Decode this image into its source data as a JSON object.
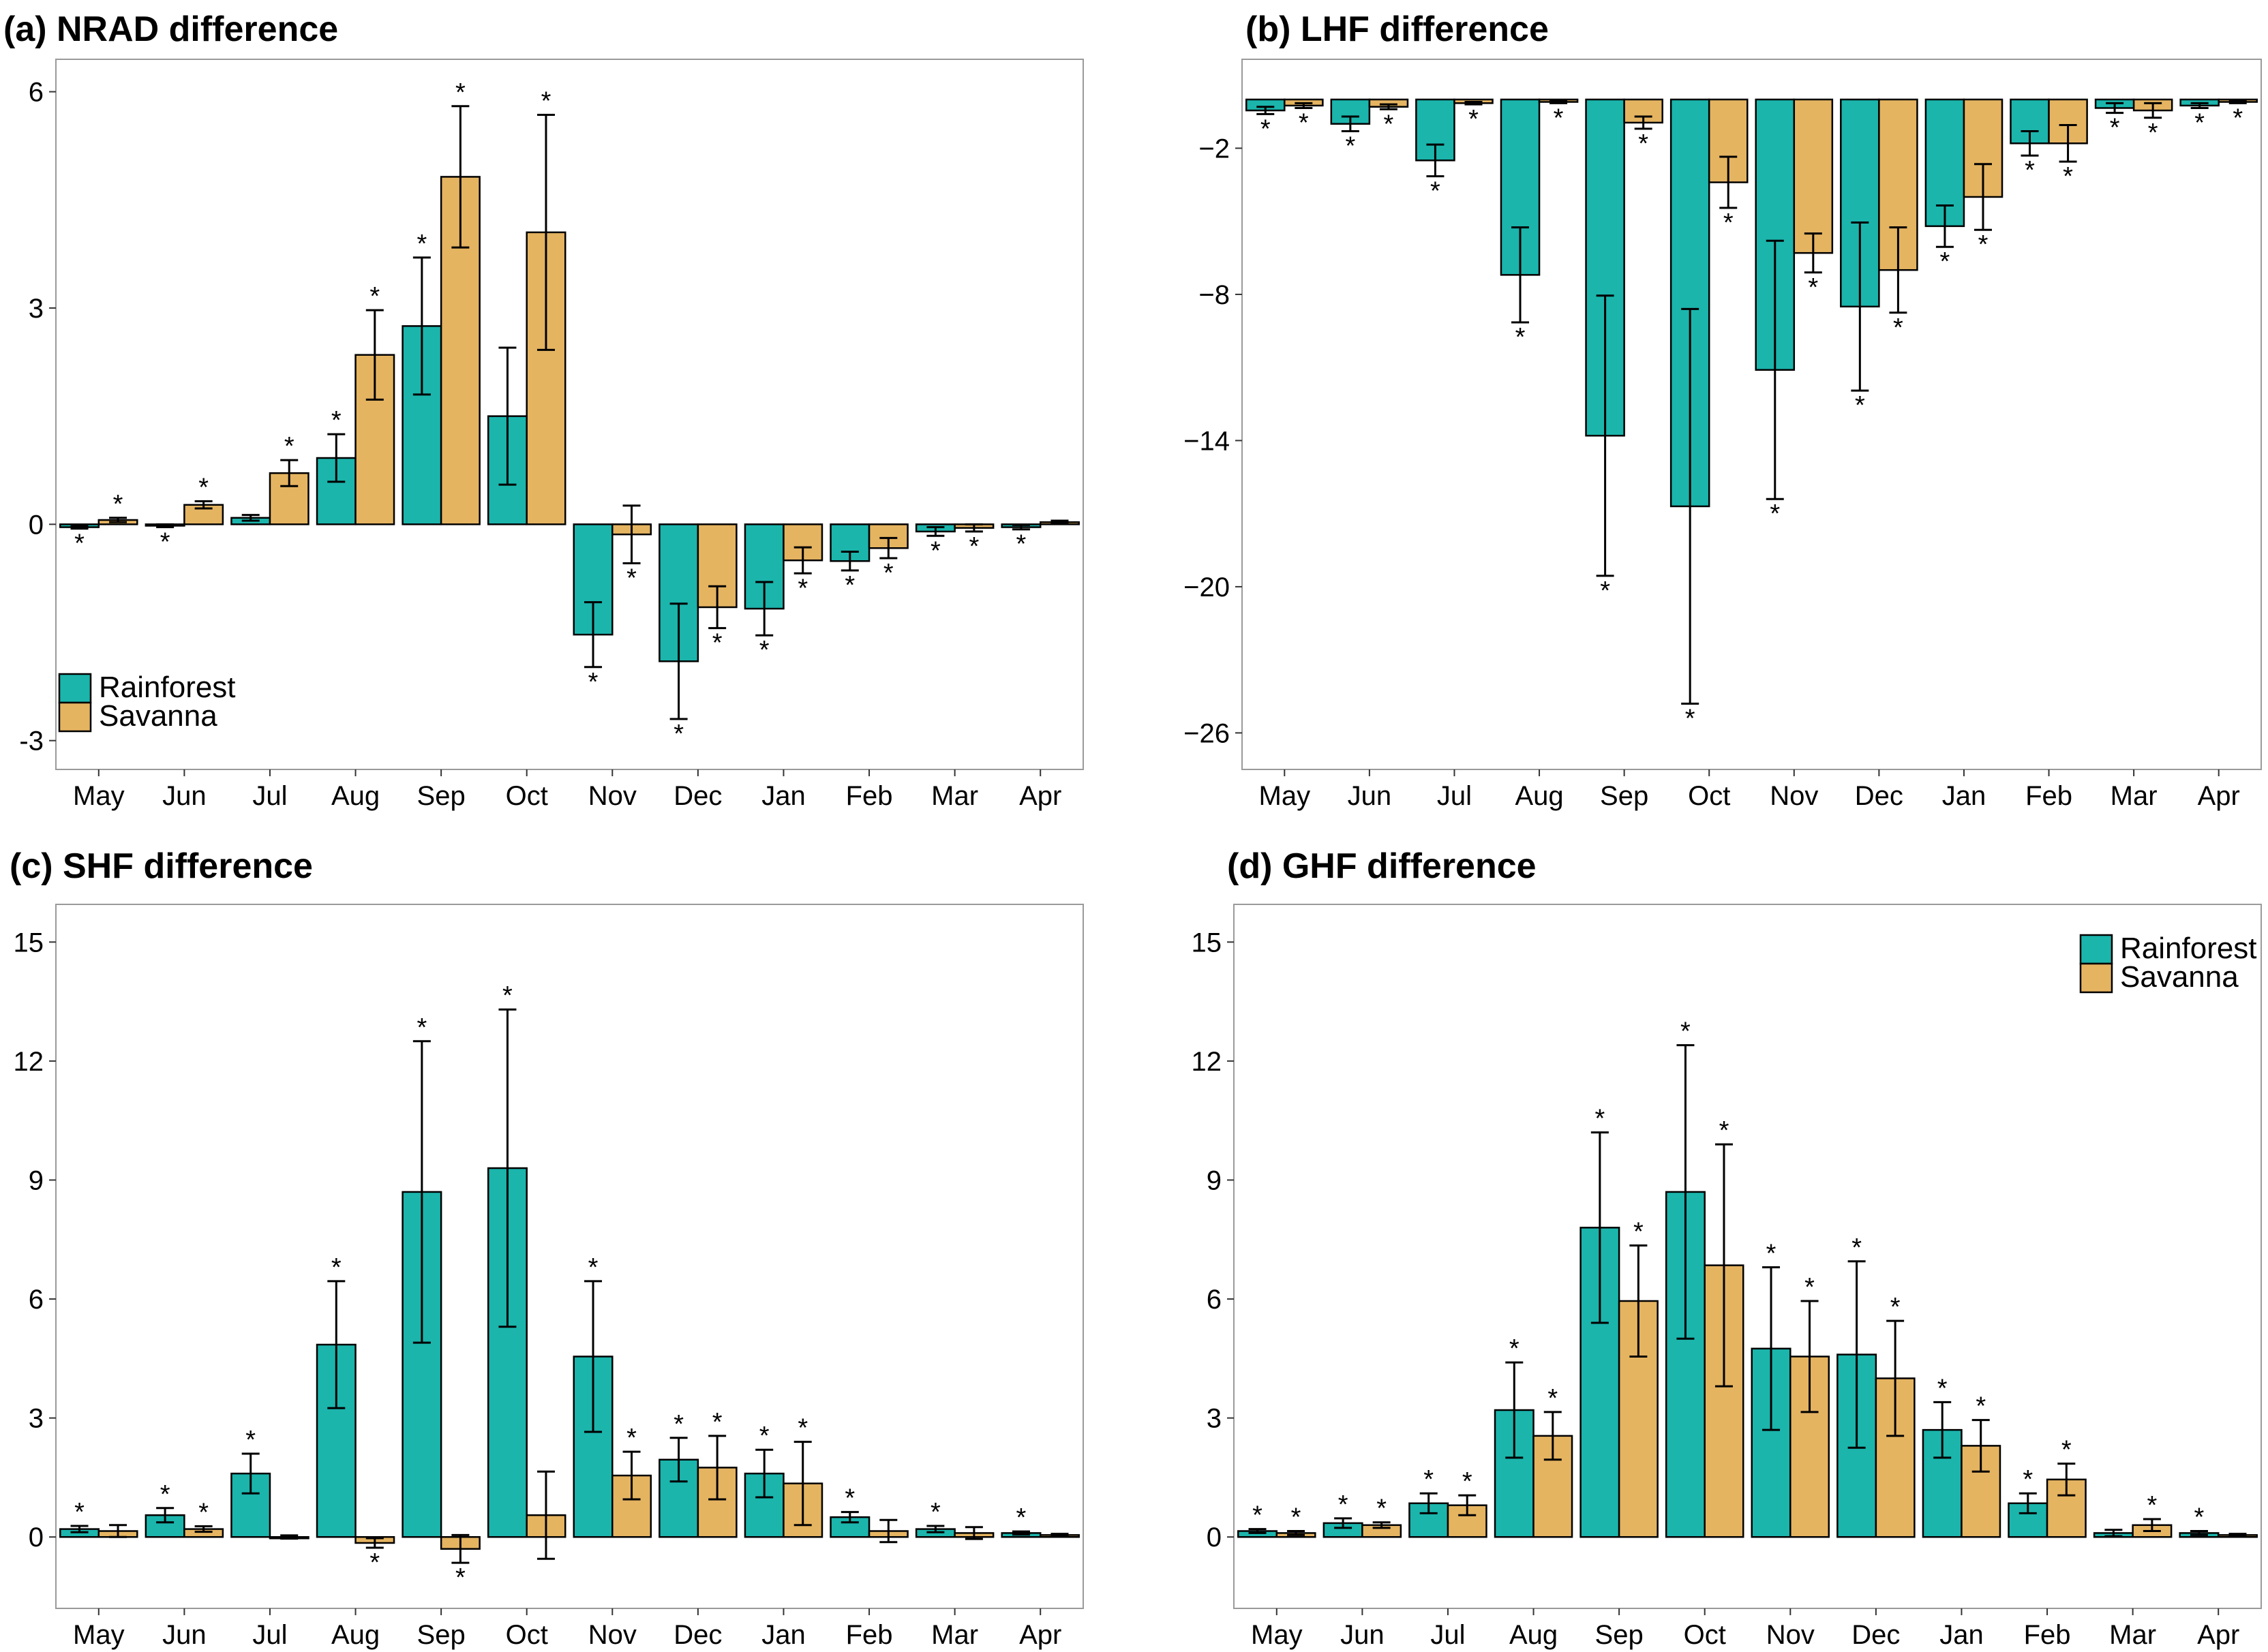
{
  "colors": {
    "rainforest": "#1bb5ac",
    "savanna": "#e5b461"
  },
  "chart_data": [
    {
      "type": "bar",
      "panel": "a",
      "title": "(a) NRAD difference",
      "categories": [
        "May",
        "Jun",
        "Jul",
        "Aug",
        "Sep",
        "Oct",
        "Nov",
        "Dec",
        "Jan",
        "Feb",
        "Mar",
        "Apr"
      ],
      "ylim": [
        -3.4,
        6.45
      ],
      "yticks": [
        -3,
        0,
        3,
        6
      ],
      "ytick_labels": [
        "-3",
        "0",
        "3",
        "6"
      ],
      "legend": {
        "placement": "bottom-left",
        "entries": [
          "Rainforest",
          "Savanna"
        ]
      },
      "series": [
        {
          "name": "Rainforest",
          "values": [
            -0.04,
            -0.02,
            0.09,
            0.92,
            2.75,
            1.5,
            -1.53,
            -1.9,
            -1.17,
            -0.51,
            -0.1,
            -0.04
          ],
          "err": [
            0.02,
            0.02,
            0.04,
            0.33,
            0.95,
            0.95,
            0.45,
            0.8,
            0.37,
            0.13,
            0.06,
            0.03
          ],
          "sig": [
            true,
            true,
            false,
            true,
            true,
            false,
            true,
            true,
            true,
            true,
            true,
            true
          ]
        },
        {
          "name": "Savanna",
          "values": [
            0.06,
            0.27,
            0.71,
            2.35,
            4.82,
            4.05,
            -0.14,
            -1.15,
            -0.5,
            -0.33,
            -0.05,
            0.03
          ],
          "err": [
            0.03,
            0.05,
            0.18,
            0.62,
            0.98,
            1.63,
            0.4,
            0.29,
            0.18,
            0.14,
            0.05,
            0.02
          ],
          "sig": [
            true,
            true,
            true,
            true,
            true,
            true,
            true,
            true,
            true,
            true,
            true,
            false
          ]
        }
      ]
    },
    {
      "type": "bar",
      "panel": "b",
      "title": "(b) LHF difference",
      "categories": [
        "May",
        "Jun",
        "Jul",
        "Aug",
        "Sep",
        "Oct",
        "Nov",
        "Dec",
        "Jan",
        "Feb",
        "Mar",
        "Apr"
      ],
      "ylim": [
        -27.5,
        1.65
      ],
      "yticks": [
        -26,
        -20,
        -14,
        -8,
        -2
      ],
      "ytick_labels": [
        "−26",
        "−20",
        "−14",
        "−8",
        "−2"
      ],
      "legend": null,
      "series": [
        {
          "name": "Rainforest",
          "values": [
            -0.45,
            -1.0,
            -2.5,
            -7.2,
            -13.8,
            -16.7,
            -11.1,
            -8.5,
            -5.2,
            -1.8,
            -0.35,
            -0.25
          ],
          "err": [
            0.15,
            0.3,
            0.65,
            1.95,
            5.75,
            8.1,
            5.3,
            3.45,
            0.85,
            0.5,
            0.2,
            0.1
          ],
          "sig": [
            true,
            true,
            true,
            true,
            true,
            true,
            true,
            true,
            true,
            true,
            true,
            true
          ]
        },
        {
          "name": "Savanna",
          "values": [
            -0.25,
            -0.3,
            -0.15,
            -0.1,
            -0.95,
            -3.4,
            -6.3,
            -7.0,
            -4.0,
            -1.8,
            -0.45,
            -0.1
          ],
          "err": [
            0.1,
            0.1,
            0.05,
            0.05,
            0.25,
            1.05,
            0.8,
            1.75,
            1.35,
            0.75,
            0.3,
            0.05
          ],
          "sig": [
            true,
            true,
            true,
            true,
            true,
            true,
            true,
            true,
            true,
            true,
            true,
            true
          ]
        }
      ]
    },
    {
      "type": "bar",
      "panel": "c",
      "title": "(c) SHF difference",
      "categories": [
        "May",
        "Jun",
        "Jul",
        "Aug",
        "Sep",
        "Oct",
        "Nov",
        "Dec",
        "Jan",
        "Feb",
        "Mar",
        "Apr"
      ],
      "ylim": [
        -1.8,
        15.95
      ],
      "yticks": [
        0,
        3,
        6,
        9,
        12,
        15
      ],
      "ytick_labels": [
        "0",
        "3",
        "6",
        "9",
        "12",
        "15"
      ],
      "legend": null,
      "series": [
        {
          "name": "Rainforest",
          "values": [
            0.2,
            0.55,
            1.6,
            4.85,
            8.7,
            9.3,
            4.55,
            1.95,
            1.6,
            0.5,
            0.2,
            0.1
          ],
          "err": [
            0.08,
            0.18,
            0.5,
            1.6,
            3.8,
            4.0,
            1.9,
            0.55,
            0.6,
            0.13,
            0.08,
            0.04
          ],
          "sig": [
            true,
            true,
            true,
            true,
            true,
            true,
            true,
            true,
            true,
            true,
            true,
            true
          ]
        },
        {
          "name": "Savanna",
          "values": [
            0.15,
            0.2,
            0.0,
            -0.15,
            -0.3,
            0.55,
            1.55,
            1.75,
            1.35,
            0.15,
            0.1,
            0.05
          ],
          "err": [
            0.15,
            0.07,
            0.04,
            0.12,
            0.35,
            1.1,
            0.6,
            0.8,
            1.05,
            0.28,
            0.15,
            0.03
          ],
          "sig": [
            false,
            true,
            false,
            true,
            true,
            false,
            true,
            true,
            true,
            false,
            false,
            false
          ]
        }
      ]
    },
    {
      "type": "bar",
      "panel": "d",
      "title": "(d) GHF difference",
      "categories": [
        "May",
        "Jun",
        "Jul",
        "Aug",
        "Sep",
        "Oct",
        "Nov",
        "Dec",
        "Jan",
        "Feb",
        "Mar",
        "Apr"
      ],
      "ylim": [
        -1.8,
        15.95
      ],
      "yticks": [
        0,
        3,
        6,
        9,
        12,
        15
      ],
      "ytick_labels": [
        "0",
        "3",
        "6",
        "9",
        "12",
        "15"
      ],
      "legend": {
        "placement": "top-right",
        "entries": [
          "Rainforest",
          "Savanna"
        ]
      },
      "series": [
        {
          "name": "Rainforest",
          "values": [
            0.15,
            0.35,
            0.85,
            3.2,
            7.8,
            8.7,
            4.75,
            4.6,
            2.7,
            0.85,
            0.1,
            0.1
          ],
          "err": [
            0.05,
            0.12,
            0.25,
            1.2,
            2.4,
            3.7,
            2.05,
            2.35,
            0.7,
            0.25,
            0.08,
            0.05
          ],
          "sig": [
            true,
            true,
            true,
            true,
            true,
            true,
            true,
            true,
            true,
            true,
            false,
            true
          ]
        },
        {
          "name": "Savanna",
          "values": [
            0.1,
            0.3,
            0.8,
            2.55,
            5.95,
            6.85,
            4.55,
            4.0,
            2.3,
            1.45,
            0.3,
            0.05
          ],
          "err": [
            0.05,
            0.07,
            0.25,
            0.6,
            1.4,
            3.05,
            1.4,
            1.45,
            0.65,
            0.4,
            0.15,
            0.03
          ],
          "sig": [
            true,
            true,
            true,
            true,
            true,
            true,
            true,
            true,
            true,
            true,
            true,
            false
          ]
        }
      ]
    }
  ]
}
